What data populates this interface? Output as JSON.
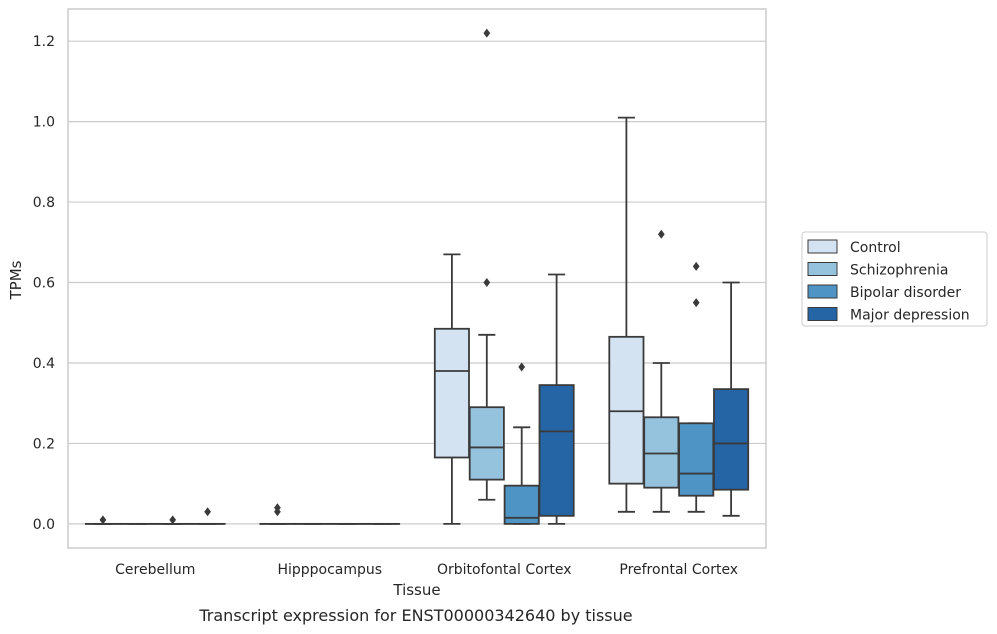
{
  "caption": "Transcript expression for ENST00000342640 by tissue",
  "colors": {
    "grid": "#cccccc",
    "frame": "#cccccc",
    "edge": "#3a3a3a",
    "series": [
      "#d4e3f2",
      "#95c2dd",
      "#4e94c4",
      "#2565a6"
    ]
  },
  "chart_data": {
    "type": "box",
    "xlabel": "Tissue",
    "ylabel": "TPMs",
    "ylim": [
      -0.06,
      1.28
    ],
    "yticks": [
      0.0,
      0.2,
      0.4,
      0.6,
      0.8,
      1.0,
      1.2
    ],
    "ytick_labels": [
      "0.0",
      "0.2",
      "0.4",
      "0.6",
      "0.8",
      "1.0",
      "1.2"
    ],
    "grid": "horizontal",
    "legend_position": "right",
    "categories": [
      "Cerebellum",
      "Hipppocampus",
      "Orbitofontal Cortex",
      "Prefrontal Cortex"
    ],
    "series": [
      {
        "name": "Control",
        "boxes": [
          {
            "whisker_low": 0.0,
            "q1": 0.0,
            "median": 0.0,
            "q3": 0.0,
            "whisker_high": 0.0,
            "outliers": [
              0.01
            ]
          },
          {
            "whisker_low": 0.0,
            "q1": 0.0,
            "median": 0.0,
            "q3": 0.0,
            "whisker_high": 0.0,
            "outliers": [
              0.03,
              0.04
            ]
          },
          {
            "whisker_low": 0.0,
            "q1": 0.165,
            "median": 0.38,
            "q3": 0.485,
            "whisker_high": 0.67,
            "outliers": []
          },
          {
            "whisker_low": 0.03,
            "q1": 0.1,
            "median": 0.28,
            "q3": 0.465,
            "whisker_high": 1.01,
            "outliers": []
          }
        ]
      },
      {
        "name": "Schizophrenia",
        "boxes": [
          {
            "whisker_low": 0.0,
            "q1": 0.0,
            "median": 0.0,
            "q3": 0.0,
            "whisker_high": 0.0,
            "outliers": []
          },
          {
            "whisker_low": 0.0,
            "q1": 0.0,
            "median": 0.0,
            "q3": 0.0,
            "whisker_high": 0.0,
            "outliers": []
          },
          {
            "whisker_low": 0.06,
            "q1": 0.11,
            "median": 0.19,
            "q3": 0.29,
            "whisker_high": 0.47,
            "outliers": [
              0.6,
              1.22
            ]
          },
          {
            "whisker_low": 0.03,
            "q1": 0.09,
            "median": 0.175,
            "q3": 0.265,
            "whisker_high": 0.4,
            "outliers": [
              0.72
            ]
          }
        ]
      },
      {
        "name": "Bipolar disorder",
        "boxes": [
          {
            "whisker_low": 0.0,
            "q1": 0.0,
            "median": 0.0,
            "q3": 0.0,
            "whisker_high": 0.0,
            "outliers": [
              0.01
            ]
          },
          {
            "whisker_low": 0.0,
            "q1": 0.0,
            "median": 0.0,
            "q3": 0.0,
            "whisker_high": 0.0,
            "outliers": []
          },
          {
            "whisker_low": 0.0,
            "q1": 0.0,
            "median": 0.015,
            "q3": 0.095,
            "whisker_high": 0.24,
            "outliers": [
              0.39
            ]
          },
          {
            "whisker_low": 0.03,
            "q1": 0.07,
            "median": 0.125,
            "q3": 0.25,
            "whisker_high": 0.25,
            "outliers": [
              0.55,
              0.64
            ]
          }
        ]
      },
      {
        "name": "Major depression",
        "boxes": [
          {
            "whisker_low": 0.0,
            "q1": 0.0,
            "median": 0.0,
            "q3": 0.0,
            "whisker_high": 0.0,
            "outliers": [
              0.03
            ]
          },
          {
            "whisker_low": 0.0,
            "q1": 0.0,
            "median": 0.0,
            "q3": 0.0,
            "whisker_high": 0.0,
            "outliers": []
          },
          {
            "whisker_low": 0.0,
            "q1": 0.02,
            "median": 0.23,
            "q3": 0.345,
            "whisker_high": 0.62,
            "outliers": []
          },
          {
            "whisker_low": 0.02,
            "q1": 0.085,
            "median": 0.2,
            "q3": 0.335,
            "whisker_high": 0.6,
            "outliers": []
          }
        ]
      }
    ]
  }
}
